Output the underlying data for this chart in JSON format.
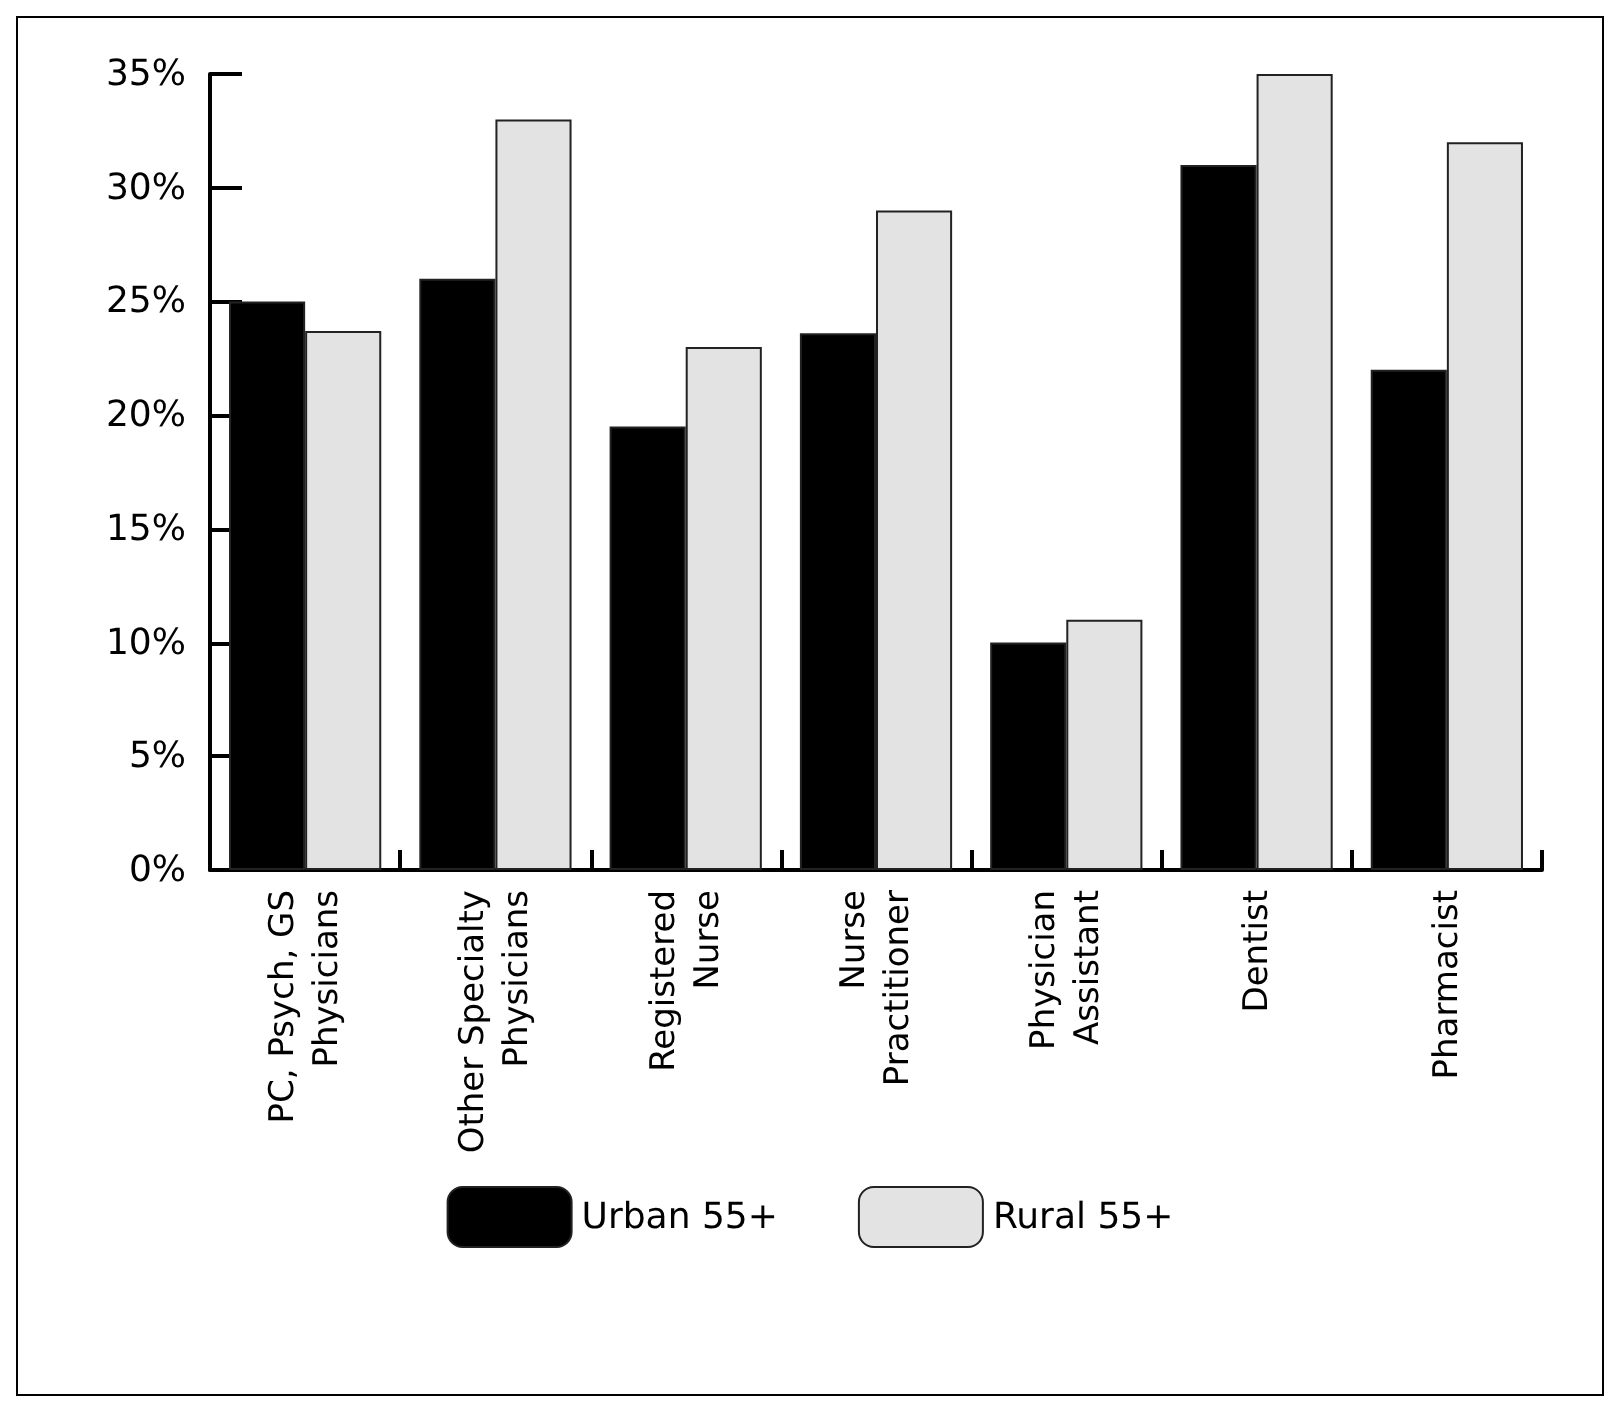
{
  "chart_data": {
    "type": "bar",
    "categories": [
      "PC, Psych, GS\nPhysicians",
      "Other Specialty\nPhysicians",
      "Registered\nNurse",
      "Nurse\nPractitioner",
      "Physician\nAssistant",
      "Dentist",
      "Pharmacist"
    ],
    "series": [
      {
        "name": "Urban 55+",
        "color": "#000000",
        "values": [
          25,
          26,
          19.5,
          23.6,
          10,
          31,
          22
        ]
      },
      {
        "name": "Rural 55+",
        "color": "#e3e3e3",
        "values": [
          23.7,
          33,
          23,
          29,
          11,
          35,
          32
        ]
      }
    ],
    "ylim": [
      0,
      35
    ],
    "yticks": [
      {
        "value": 0,
        "label": "0%"
      },
      {
        "value": 5,
        "label": "5%"
      },
      {
        "value": 10,
        "label": "10%"
      },
      {
        "value": 15,
        "label": "15%"
      },
      {
        "value": 20,
        "label": "20%"
      },
      {
        "value": 25,
        "label": "25%"
      },
      {
        "value": 30,
        "label": "30%"
      },
      {
        "value": 35,
        "label": "35%"
      }
    ],
    "grid": false,
    "legend": "bottom"
  }
}
